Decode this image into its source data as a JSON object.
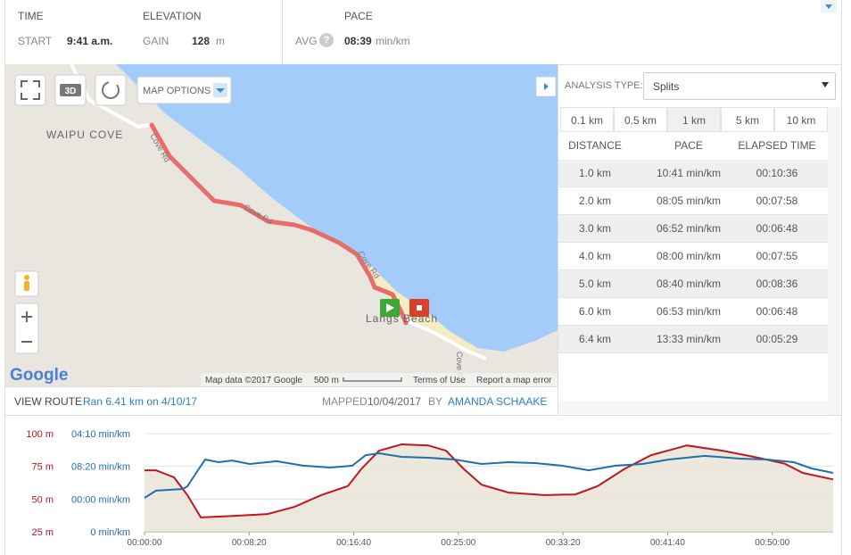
{
  "header": {
    "time_label": "TIME",
    "elevation_label": "ELEVATION",
    "pace_label": "PACE",
    "start_label": "START",
    "start_value": "9:41 a.m.",
    "gain_label": "GAIN",
    "gain_value": "128",
    "gain_unit": "m",
    "avg_label": "AVG",
    "help": "?",
    "avg_value": "08:39",
    "avg_unit": "min/km"
  },
  "map": {
    "controls": {
      "three_d": "3D",
      "map_options": "MAP OPTIONS"
    },
    "labels": {
      "area": "WAIPU COVE",
      "roads": [
        "Cove Rd",
        "Cove Rd",
        "Cove Rd",
        "Cove Rd"
      ],
      "beach": "Langs Beach"
    },
    "footer": {
      "logo": "Google",
      "data": "Map data ©2017 Google",
      "scale": "500 m",
      "terms": "Terms of Use",
      "report": "Report a map error"
    }
  },
  "route_bar": {
    "view_route": "VIEW ROUTE",
    "description": "Ran 6.41 km on 4/10/17",
    "mapped_label": "MAPPED",
    "mapped_date": "10/04/2017",
    "by": "BY",
    "author": "AMANDA SCHAAKE"
  },
  "analysis": {
    "type_label": "ANALYSIS TYPE:",
    "type_value": "Splits",
    "tabs": [
      "0.1 km",
      "0.5 km",
      "1 km",
      "5 km",
      "10 km"
    ],
    "active_tab": 2,
    "columns": [
      "DISTANCE",
      "PACE",
      "ELAPSED TIME"
    ],
    "rows": [
      [
        "1.0 km",
        "10:41 min/km",
        "00:10:36"
      ],
      [
        "2.0 km",
        "08:05 min/km",
        "00:07:58"
      ],
      [
        "3.0 km",
        "06:52 min/km",
        "00:06:48"
      ],
      [
        "4.0 km",
        "08:00 min/km",
        "00:07:55"
      ],
      [
        "5.0 km",
        "08:40 min/km",
        "00:08:36"
      ],
      [
        "6.0 km",
        "06:53 min/km",
        "00:06:48"
      ],
      [
        "6.4 km",
        "13:33 min/km",
        "00:05:29"
      ]
    ]
  },
  "chart_data": {
    "type": "line",
    "xlim": [
      0,
      3291
    ],
    "xticks": [
      {
        "value": 0,
        "label": "00:00:00"
      },
      {
        "value": 500,
        "label": "00:08:20"
      },
      {
        "value": 1000,
        "label": "00:16:40"
      },
      {
        "value": 1500,
        "label": "00:25:00"
      },
      {
        "value": 2000,
        "label": "00:33:20"
      },
      {
        "value": 2500,
        "label": "00:41:40"
      },
      {
        "value": 3000,
        "label": "00:50:00"
      }
    ],
    "ylim": [
      25,
      100
    ],
    "yticks": [
      {
        "value": 25,
        "label": "25 m"
      },
      {
        "value": 50,
        "label": "50 m"
      },
      {
        "value": 75,
        "label": "75 m"
      },
      {
        "value": 100,
        "label": "100 m"
      }
    ],
    "y2lim": [
      0,
      750
    ],
    "y2ticks": [
      {
        "value": 0,
        "label": "0 min/km"
      },
      {
        "value": 250,
        "label": "00:00 min/km"
      },
      {
        "value": 500,
        "label": "08:20 min/km"
      },
      {
        "value": 750,
        "label": "04:10 min/km"
      }
    ],
    "grid": true,
    "series": [
      {
        "color": "#c0171c",
        "fill": "#e7e2d6",
        "axis": "y",
        "x": [
          0,
          55,
          141,
          205,
          269,
          375,
          588,
          716,
          844,
          972,
          1036,
          1121,
          1228,
          1356,
          1441,
          1526,
          1611,
          1739,
          1910,
          2059,
          2166,
          2293,
          2421,
          2592,
          2762,
          2933,
          3060,
          3146,
          3291
        ],
        "values": [
          72,
          72,
          66.6,
          53,
          36,
          36.7,
          38.6,
          44,
          53,
          60,
          73,
          87,
          91.8,
          91,
          87,
          73,
          61,
          55,
          53,
          53.6,
          60,
          73,
          83.6,
          91,
          87,
          81.6,
          77,
          70,
          65
        ]
      },
      {
        "color": "#1f6fad",
        "axis": "y2",
        "x": [
          0,
          55,
          183,
          205,
          247,
          290,
          354,
          418,
          503,
          631,
          759,
          887,
          993,
          1057,
          1121,
          1228,
          1356,
          1483,
          1611,
          1739,
          1867,
          1995,
          2123,
          2251,
          2379,
          2506,
          2677,
          2847,
          2975,
          3103,
          3188,
          3291
        ],
        "values": [
          259,
          314,
          327,
          348,
          450,
          552,
          532,
          545,
          518,
          539,
          505,
          491,
          505,
          586,
          600,
          573,
          566,
          552,
          518,
          532,
          525,
          505,
          470,
          505,
          518,
          552,
          580,
          559,
          552,
          532,
          484,
          450
        ]
      }
    ]
  }
}
